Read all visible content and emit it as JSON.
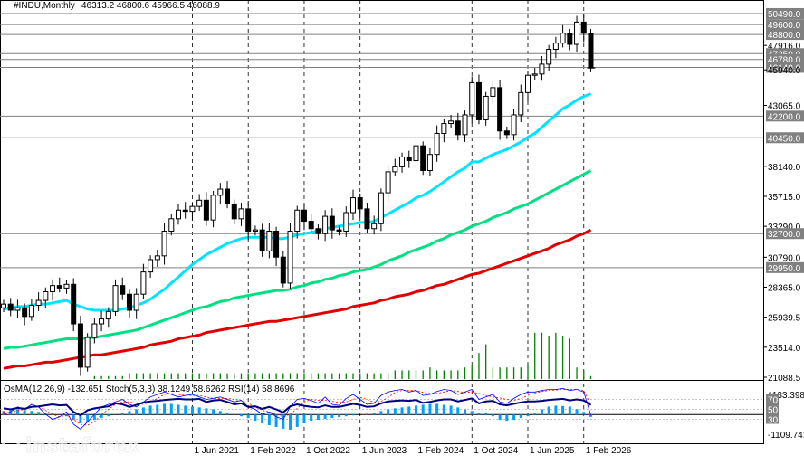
{
  "header": {
    "symbol": "#INDU,Monthly",
    "ohlc": "46313.2 46800.6 45966.5 46088.9"
  },
  "oscillator_header": {
    "text": "OsMA(12,26,9) -132.651  Stoch(5,3,3) 38.1249 58.6262  RSI(14) 58.8696"
  },
  "watermark": {
    "brand": "instaforex",
    "tagline": "Instant Forex Trading"
  },
  "colors": {
    "candle": "#000000",
    "ma_fast": "#00e5ff",
    "ma_mid": "#00e080",
    "ma_slow": "#e00000",
    "volume": "#008000",
    "osma": "#00a0ff",
    "stoch_main": "#0000ff",
    "stoch_signal": "#ff0000",
    "rsi": "#000080",
    "level_line": "#808080"
  },
  "chart_data": [
    {
      "type": "candlestick",
      "timeframe": "Monthly",
      "y_min": 21088.5,
      "y_max": 51000,
      "y_ticks": [
        "50490.0",
        "49600.0",
        "48800.0",
        "47916.0",
        "47250.0",
        "46780.0",
        "46140.0",
        "45940.0",
        "43065.0",
        "42200.0",
        "40450.0",
        "38140.0",
        "35715.0",
        "33290.0",
        "32700.0",
        "30790.0",
        "29950.0",
        "28365.0",
        "25939.5",
        "23514.0",
        "21088.5"
      ],
      "y_tick_values": [
        50490,
        49600,
        48800,
        47916,
        47250,
        46780,
        46140,
        45940,
        43065,
        42200,
        40450,
        38140,
        35715,
        33290,
        32700,
        30790,
        29950,
        28365,
        25939.5,
        23514,
        21088.5
      ],
      "highlighted_levels": [
        50490,
        49600,
        48800,
        47250,
        46780,
        46140,
        42200,
        40450,
        32700,
        29950
      ],
      "x_ticks": [
        "1 Jun 2021",
        "1 Feb 2022",
        "1 Oct 2022",
        "1 Jun 2023",
        "1 Feb 2024",
        "1 Oct 2024",
        "1 Jun 2025",
        "1 Feb 2026"
      ],
      "x_tick_index": [
        27,
        35,
        43,
        51,
        59,
        67,
        75,
        83
      ],
      "first_date": "Mar 2019",
      "closes": [
        27000,
        26500,
        26700,
        26000,
        26900,
        27300,
        28000,
        28500,
        28300,
        28600,
        25400,
        21900,
        24300,
        25400,
        25800,
        26400,
        28500,
        27800,
        26500,
        27800,
        29600,
        30600,
        30900,
        32900,
        33900,
        34600,
        34500,
        34900,
        35400,
        33800,
        35800,
        36300,
        35100,
        33900,
        34700,
        32900,
        33000,
        31300,
        32900,
        30800,
        28700,
        32900,
        34600,
        33700,
        33100,
        32700,
        34100,
        33000,
        32900,
        34400,
        35600,
        34700,
        33100,
        33500,
        36000,
        37700,
        38100,
        38900,
        38600,
        39800,
        37800,
        39100,
        40800,
        41600,
        41800,
        40700,
        42300,
        44900,
        41900,
        43800,
        44500,
        41000,
        40700,
        42300,
        44100,
        45500,
        45600,
        46400,
        47600,
        48100,
        48900,
        48000,
        49800,
        48900,
        46088.9
      ],
      "ma_fast": [
        26600,
        26700,
        26800,
        26800,
        26900,
        27000,
        27000,
        27100,
        27200,
        27300,
        27000,
        26800,
        26600,
        26500,
        26500,
        26500,
        26500,
        26600,
        26700,
        26900,
        27100,
        27400,
        27800,
        28200,
        28700,
        29200,
        29700,
        30200,
        30600,
        31000,
        31300,
        31600,
        31900,
        32100,
        32300,
        32400,
        32400,
        32400,
        32400,
        32300,
        32300,
        32400,
        32600,
        32700,
        32800,
        32900,
        33100,
        33200,
        33300,
        33400,
        33500,
        33600,
        33600,
        33700,
        34000,
        34300,
        34600,
        34900,
        35200,
        35600,
        35800,
        36100,
        36500,
        36900,
        37300,
        37700,
        38000,
        38500,
        38500,
        38800,
        39100,
        39300,
        39500,
        39800,
        40100,
        40500,
        40800,
        41300,
        41800,
        42300,
        42800,
        43100,
        43500,
        43800,
        44000
      ],
      "ma_mid": [
        23400,
        23500,
        23500,
        23600,
        23700,
        23800,
        23900,
        24000,
        24100,
        24200,
        24200,
        24200,
        24300,
        24300,
        24400,
        24500,
        24600,
        24700,
        24800,
        24900,
        25100,
        25300,
        25500,
        25700,
        25900,
        26100,
        26300,
        26500,
        26700,
        26800,
        27000,
        27200,
        27300,
        27500,
        27600,
        27700,
        27800,
        27900,
        28000,
        28100,
        28100,
        28200,
        28400,
        28500,
        28700,
        28800,
        29000,
        29100,
        29300,
        29400,
        29600,
        29700,
        29800,
        30000,
        30200,
        30500,
        30700,
        30900,
        31200,
        31400,
        31600,
        31800,
        32100,
        32300,
        32600,
        32800,
        33000,
        33300,
        33500,
        33700,
        34000,
        34200,
        34400,
        34700,
        34900,
        35100,
        35400,
        35700,
        36000,
        36300,
        36600,
        36900,
        37200,
        37500,
        37800
      ],
      "ma_slow": [
        21800,
        21900,
        22000,
        22000,
        22100,
        22200,
        22300,
        22300,
        22400,
        22500,
        22600,
        22700,
        22800,
        22900,
        22900,
        23000,
        23100,
        23200,
        23300,
        23400,
        23500,
        23700,
        23800,
        23900,
        24000,
        24200,
        24300,
        24400,
        24500,
        24700,
        24800,
        24900,
        25000,
        25100,
        25200,
        25300,
        25400,
        25500,
        25600,
        25600,
        25700,
        25800,
        25900,
        26000,
        26100,
        26200,
        26300,
        26400,
        26500,
        26600,
        26800,
        26900,
        27000,
        27100,
        27300,
        27400,
        27600,
        27700,
        27800,
        28000,
        28100,
        28300,
        28500,
        28600,
        28800,
        29000,
        29200,
        29400,
        29500,
        29700,
        29900,
        30100,
        30300,
        30500,
        30700,
        30900,
        31100,
        31300,
        31500,
        31800,
        32000,
        32200,
        32500,
        32700,
        33000
      ],
      "volume": [
        0,
        0,
        0,
        0,
        0,
        0,
        0,
        0,
        0,
        0,
        0,
        0,
        0,
        1,
        1,
        1,
        1,
        1,
        2,
        2,
        2,
        2,
        2,
        2,
        2,
        2,
        2,
        2,
        2,
        2,
        2,
        2,
        2,
        2,
        2,
        2,
        2,
        2,
        2,
        2,
        2,
        2,
        2,
        2,
        2,
        2,
        2,
        2,
        2,
        2,
        2,
        2,
        2,
        2,
        2,
        2,
        3,
        3,
        3,
        3,
        3,
        4,
        3,
        3,
        3,
        3,
        4,
        5,
        9,
        12,
        4,
        4,
        4,
        4,
        4,
        5,
        16,
        16,
        15,
        16,
        15,
        14,
        4,
        3,
        1
      ]
    },
    {
      "type": "indicator",
      "name": "OsMA / Stoch / RSI",
      "y_ticks": [
        "1133.398",
        "70",
        "50",
        "30",
        "-1109.741"
      ],
      "y_tick_values": [
        1133.398,
        70,
        50,
        30,
        -1109.741
      ],
      "osma": [
        200,
        250,
        300,
        250,
        200,
        150,
        100,
        50,
        0,
        -100,
        -300,
        -500,
        -400,
        -300,
        -200,
        -100,
        0,
        100,
        200,
        300,
        400,
        500,
        550,
        600,
        600,
        550,
        500,
        450,
        400,
        350,
        300,
        200,
        100,
        0,
        -100,
        -200,
        -350,
        -500,
        -600,
        -700,
        -800,
        -850,
        -700,
        -500,
        -350,
        -300,
        -250,
        -200,
        -150,
        -100,
        -50,
        0,
        50,
        100,
        200,
        300,
        350,
        400,
        450,
        500,
        550,
        600,
        600,
        550,
        500,
        400,
        300,
        200,
        100,
        100,
        -100,
        -300,
        -350,
        -300,
        -200,
        -100,
        100,
        300,
        450,
        500,
        480,
        450,
        300,
        150,
        -132.651
      ],
      "stoch_main": [
        40,
        45,
        55,
        50,
        60,
        55,
        40,
        30,
        35,
        45,
        20,
        10,
        25,
        40,
        55,
        60,
        65,
        70,
        60,
        55,
        65,
        75,
        80,
        85,
        80,
        75,
        78,
        80,
        75,
        70,
        72,
        75,
        70,
        65,
        68,
        55,
        50,
        40,
        45,
        35,
        30,
        55,
        70,
        72,
        68,
        62,
        75,
        60,
        58,
        72,
        80,
        70,
        60,
        62,
        78,
        85,
        88,
        90,
        85,
        88,
        78,
        80,
        86,
        90,
        88,
        80,
        85,
        90,
        70,
        75,
        80,
        65,
        62,
        72,
        80,
        85,
        85,
        88,
        90,
        90,
        92,
        88,
        90,
        85,
        38.1249
      ],
      "stoch_signal": [
        45,
        42,
        48,
        50,
        55,
        55,
        48,
        40,
        35,
        38,
        30,
        20,
        18,
        25,
        40,
        50,
        60,
        65,
        65,
        62,
        60,
        65,
        72,
        80,
        82,
        80,
        78,
        78,
        78,
        75,
        72,
        72,
        72,
        70,
        68,
        62,
        55,
        48,
        45,
        40,
        35,
        40,
        52,
        65,
        70,
        68,
        68,
        66,
        64,
        65,
        70,
        74,
        70,
        64,
        66,
        74,
        84,
        88,
        88,
        88,
        84,
        82,
        82,
        85,
        88,
        86,
        84,
        85,
        82,
        78,
        75,
        73,
        70,
        68,
        72,
        78,
        83,
        86,
        88,
        89,
        90,
        90,
        90,
        88,
        58.6262
      ],
      "rsi": [
        52,
        50,
        53,
        51,
        55,
        56,
        58,
        60,
        58,
        59,
        45,
        38,
        48,
        52,
        54,
        56,
        62,
        60,
        55,
        59,
        64,
        66,
        67,
        69,
        70,
        71,
        70,
        70,
        71,
        65,
        68,
        69,
        65,
        60,
        62,
        55,
        56,
        51,
        55,
        50,
        44,
        56,
        60,
        57,
        55,
        54,
        58,
        55,
        55,
        58,
        61,
        59,
        55,
        56,
        62,
        66,
        67,
        68,
        67,
        69,
        63,
        65,
        68,
        70,
        70,
        66,
        69,
        72,
        62,
        66,
        67,
        60,
        58,
        61,
        64,
        66,
        66,
        67,
        69,
        70,
        71,
        68,
        70,
        68,
        58.8696
      ]
    }
  ]
}
